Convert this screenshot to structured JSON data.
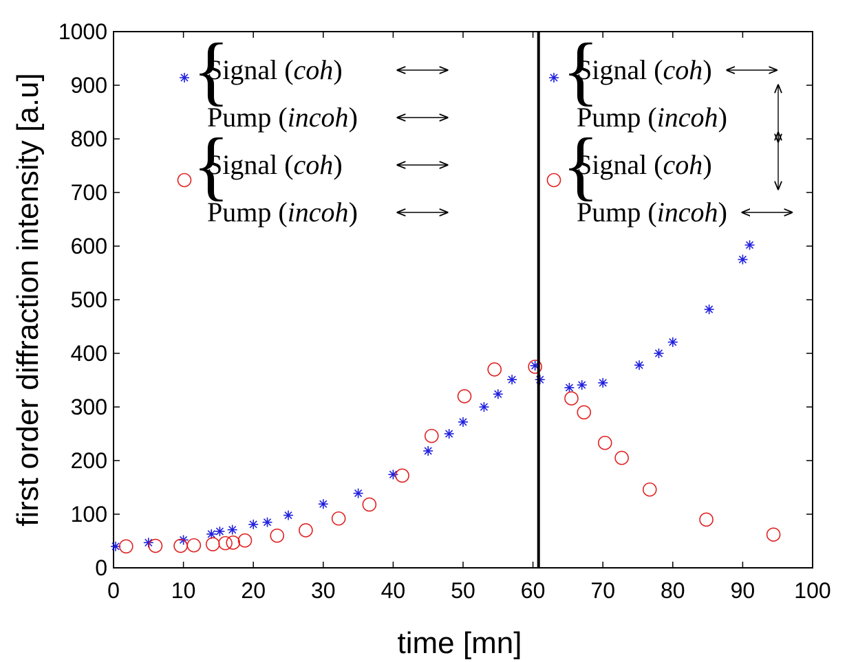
{
  "chart_data": {
    "type": "scatter",
    "title": "",
    "xlabel": "time [mn]",
    "ylabel": "first order diffraction intensity  [a.u]",
    "xlim": [
      0,
      100
    ],
    "ylim": [
      0,
      1000
    ],
    "xticks": [
      "0",
      "10",
      "20",
      "30",
      "40",
      "50",
      "60",
      "70",
      "80",
      "90",
      "100"
    ],
    "yticks": [
      "0",
      "100",
      "200",
      "300",
      "400",
      "500",
      "600",
      "700",
      "800",
      "900",
      "1000"
    ],
    "grid": false,
    "vline_x": 60.8,
    "series": [
      {
        "marker": "asterisk",
        "color": "#1f1fdd",
        "x": [
          0.3,
          5,
          10,
          14,
          15.2,
          17,
          20,
          22,
          25,
          30,
          35,
          40,
          45,
          48,
          50,
          53,
          55,
          57,
          60.3,
          61,
          65.2,
          67,
          70,
          75.2,
          78,
          80,
          85.2,
          90,
          91
        ],
        "y": [
          40,
          47,
          52,
          63,
          68,
          71,
          81,
          85,
          98,
          119,
          139,
          174,
          218,
          250,
          272,
          300,
          324,
          351,
          377,
          351,
          336,
          341,
          345,
          378,
          400,
          421,
          482,
          575,
          602
        ]
      },
      {
        "marker": "circle",
        "color": "#e02020",
        "x": [
          1.8,
          6,
          9.6,
          11.5,
          14.2,
          16,
          17.1,
          18.8,
          23.4,
          27.5,
          32.2,
          36.6,
          41.3,
          45.5,
          50.2,
          54.5,
          60.3,
          65.5,
          67.3,
          70.3,
          72.7,
          76.7,
          84.8,
          94.4
        ],
        "y": [
          40,
          41,
          41,
          42,
          44,
          46,
          47,
          51,
          60,
          70,
          92,
          118,
          172,
          246,
          320,
          370,
          375,
          316,
          290,
          233,
          205,
          146,
          90,
          62
        ]
      }
    ],
    "legend": {
      "left": {
        "groups": [
          {
            "marker": "asterisk",
            "entries": [
              {
                "base": "Signal (",
                "ital": "coh",
                "close": ")",
                "arrow": "horizontal"
              },
              {
                "base": "Pump (",
                "ital": "incoh",
                "close": ")",
                "arrow": "horizontal"
              }
            ]
          },
          {
            "marker": "circle",
            "entries": [
              {
                "base": "Signal (",
                "ital": "coh",
                "close": ")",
                "arrow": "horizontal"
              },
              {
                "base": "Pump (",
                "ital": "incoh",
                "close": ")",
                "arrow": "horizontal"
              }
            ]
          }
        ]
      },
      "right": {
        "groups": [
          {
            "marker": "asterisk",
            "entries": [
              {
                "base": "Signal (",
                "ital": "coh",
                "close": ")",
                "arrow": "horizontal"
              },
              {
                "base": "Pump (",
                "ital": "incoh",
                "close": ")",
                "arrow": "vertical"
              }
            ]
          },
          {
            "marker": "circle",
            "entries": [
              {
                "base": "Signal (",
                "ital": "coh",
                "close": ")",
                "arrow": "vertical"
              },
              {
                "base": "Pump (",
                "ital": "incoh",
                "close": ")",
                "arrow": "horizontal"
              }
            ]
          }
        ]
      }
    }
  }
}
